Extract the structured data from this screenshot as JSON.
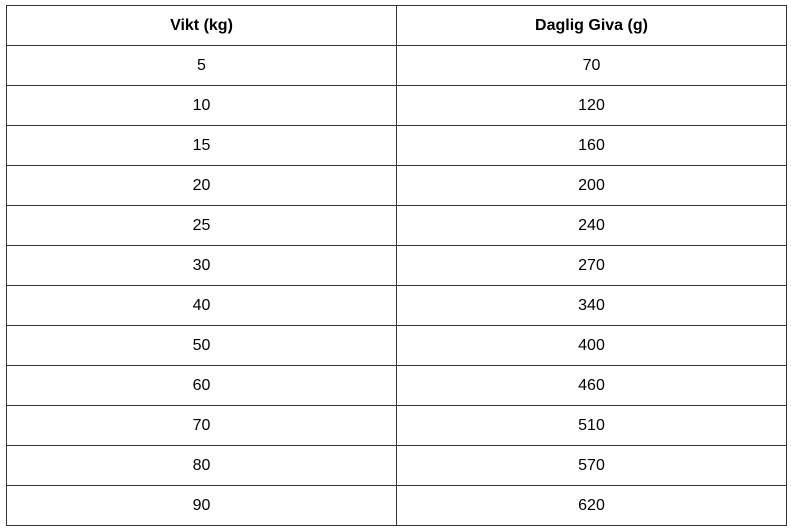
{
  "table": {
    "headers": [
      "Vikt (kg)",
      "Daglig Giva (g)"
    ],
    "rows": [
      [
        "5",
        "70"
      ],
      [
        "10",
        "120"
      ],
      [
        "15",
        "160"
      ],
      [
        "20",
        "200"
      ],
      [
        "25",
        "240"
      ],
      [
        "30",
        "270"
      ],
      [
        "40",
        "340"
      ],
      [
        "50",
        "400"
      ],
      [
        "60",
        "460"
      ],
      [
        "70",
        "510"
      ],
      [
        "80",
        "570"
      ],
      [
        "90",
        "620"
      ]
    ]
  }
}
